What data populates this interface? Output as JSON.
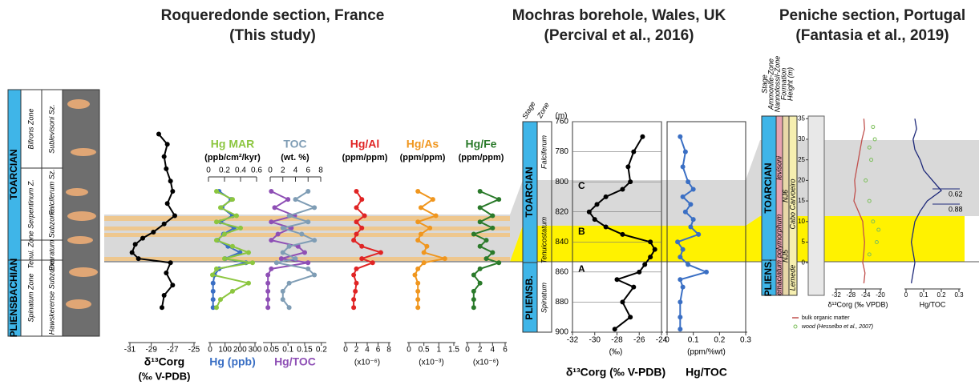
{
  "sections": [
    {
      "title": "Roqueredonde section, France",
      "subtitle": "(This study)"
    },
    {
      "title": "Mochras borehole, Wales, UK",
      "subtitle": "(Percival et al., 2016)"
    },
    {
      "title": "Peniche section, Portugal",
      "subtitle": "(Fantasia et al., 2019)"
    }
  ],
  "roqueredonde_column": {
    "stage": [
      "TOARCIAN",
      "PLIENSBACHIAN"
    ],
    "zones": [
      "Bifrons Zone",
      "Serpentinum Z.",
      "Tenui. Zone",
      "Spinatum Zone"
    ],
    "subzones": [
      "Sublevisoni Sz.",
      "Falciferum Sz.",
      "Exaratum Subzone",
      "Hawskerense Subzone"
    ]
  },
  "mochras_column": {
    "header": [
      "Stage",
      "Zone",
      "(m)"
    ],
    "stage": [
      "TOARCIAN",
      "PLIENSB."
    ],
    "zones": [
      "Falciferum",
      "Tenuicostatum",
      "Spinatum"
    ],
    "markers": [
      "C",
      "B",
      "A"
    ]
  },
  "peniche_column": {
    "header": [
      "Stage",
      "Ammonite-Zone",
      "Nannofossil-Zone",
      "Formation",
      "Height (m)"
    ],
    "stage": [
      "TOARCIAN",
      "PLIENS."
    ],
    "zones": [
      "levisoni",
      "polymorphum",
      "emaciatum"
    ],
    "nannofossil": [
      "NJ6",
      "NJ5"
    ],
    "formation": [
      "Cabo Carvoeiro",
      "Lemede"
    ]
  },
  "chart_data": [
    {
      "type": "line",
      "markers": true,
      "xlabel": "δ¹³Corg",
      "xunit": "(‰ V-PDB)",
      "y": [
        9.9,
        9.4,
        8.8,
        8.2,
        7.6,
        7.1,
        6.5,
        5.9,
        5.5,
        5.1,
        4.8,
        4.5,
        4.1,
        3.8,
        3.6,
        3.1,
        2.5,
        2.0,
        1.4
      ],
      "ylim": [
        0,
        10
      ],
      "xlim": [
        -31,
        -25
      ],
      "xticks": [
        -31,
        -29,
        -27,
        -25
      ],
      "series": [
        {
          "color": "#000000",
          "values": [
            -28.3,
            -27.5,
            -27.8,
            -27.6,
            -27.2,
            -27.0,
            -27.5,
            -26.8,
            -27.8,
            -28.8,
            -29.8,
            -30.5,
            -30.8,
            -30.2,
            -27.2,
            -27.6,
            -27.0,
            -27.8,
            -28.0
          ]
        }
      ]
    },
    {
      "type": "line",
      "markers": true,
      "subtitle": "(ppb/cm²/kyr)",
      "y": [
        7.1,
        6.7,
        6.3,
        5.9,
        5.6,
        5.3,
        5.0,
        4.7,
        4.4,
        4.1,
        3.8,
        3.6,
        3.3,
        3.0,
        2.6,
        2.2,
        1.8,
        1.4
      ],
      "ylim": [
        0,
        10
      ],
      "xlim": [
        0,
        300
      ],
      "xticks": [
        0,
        100,
        200,
        300
      ],
      "x2lim": [
        0,
        0.6
      ],
      "x2ticks": [
        0,
        0.2,
        0.4,
        0.6
      ],
      "series": [
        {
          "name": "Hg (ppb)",
          "color": "#3a6fc4",
          "values": [
            60,
            140,
            80,
            150,
            70,
            160,
            90,
            50,
            120,
            200,
            100,
            240,
            60,
            30,
            20,
            20,
            20,
            20
          ]
        },
        {
          "name": "Hg MAR",
          "color": "#8cc63f",
          "axis": "x2",
          "values": [
            0.1,
            0.3,
            0.15,
            0.35,
            0.1,
            0.4,
            0.2,
            0.1,
            0.3,
            0.5,
            0.2,
            0.55,
            0.1,
            0.05,
            0.5,
            0.3,
            0.15,
            0.1
          ]
        }
      ]
    },
    {
      "type": "line",
      "markers": true,
      "subtitle": "(wt. %)",
      "y": [
        7.1,
        6.7,
        6.3,
        5.9,
        5.6,
        5.3,
        5.0,
        4.7,
        4.4,
        4.1,
        3.8,
        3.6,
        3.3,
        3.0,
        2.6,
        2.2,
        1.8,
        1.4
      ],
      "ylim": [
        0,
        10
      ],
      "xlim": [
        0.03,
        0.21
      ],
      "xticks": [
        0.05,
        0.1,
        0.15,
        0.2
      ],
      "x2lim": [
        0,
        8
      ],
      "x2ticks": [
        0,
        2,
        4,
        6,
        8
      ],
      "series": [
        {
          "name": "Hg/TOC",
          "color": "#8e4fb5",
          "values": [
            0.05,
            0.1,
            0.06,
            0.12,
            0.05,
            0.11,
            0.07,
            0.05,
            0.13,
            0.15,
            0.08,
            0.16,
            0.05,
            0.04,
            0.04,
            0.04,
            0.04,
            0.04
          ]
        },
        {
          "name": "TOC",
          "color": "#7f9db5",
          "axis": "x2",
          "values": [
            6,
            4,
            7,
            3,
            6,
            2,
            5,
            7,
            3,
            2,
            4,
            1,
            6,
            7,
            3,
            2,
            2,
            3
          ]
        }
      ]
    },
    {
      "type": "line",
      "markers": true,
      "subtitle": "(ppm/ppm)",
      "xunit": "(x10⁻⁶)",
      "y": [
        7.1,
        6.7,
        6.3,
        5.9,
        5.6,
        5.3,
        5.0,
        4.7,
        4.4,
        4.1,
        3.8,
        3.6,
        3.3,
        3.0,
        2.6,
        2.2,
        1.8,
        1.4
      ],
      "ylim": [
        0,
        10
      ],
      "xlim": [
        0,
        8
      ],
      "xticks": [
        0,
        2,
        4,
        6,
        8
      ],
      "series": [
        {
          "name": "Hg/Al",
          "color": "#e02424",
          "values": [
            2,
            3,
            2,
            3.5,
            2,
            3,
            2,
            1.5,
            3,
            6.5,
            3,
            5,
            2,
            1.5,
            2,
            1.8,
            1.5,
            1.5
          ]
        }
      ]
    },
    {
      "type": "line",
      "markers": true,
      "subtitle": "(ppm/ppm)",
      "xunit": "(x10⁻³)",
      "y": [
        7.1,
        6.7,
        6.3,
        5.9,
        5.6,
        5.3,
        5.0,
        4.7,
        4.4,
        4.1,
        3.8,
        3.6,
        3.3,
        3.0,
        2.6,
        2.2,
        1.8,
        1.4
      ],
      "ylim": [
        0,
        10
      ],
      "xlim": [
        0,
        1.5
      ],
      "xticks": [
        0,
        0.5,
        1,
        1.5
      ],
      "series": [
        {
          "name": "Hg/As",
          "color": "#f0961e",
          "values": [
            0.3,
            0.8,
            0.4,
            0.9,
            0.3,
            0.7,
            0.4,
            0.3,
            0.6,
            0.5,
            1.2,
            0.5,
            0.3,
            0.2,
            0.3,
            0.3,
            0.3,
            0.3
          ]
        }
      ]
    },
    {
      "type": "line",
      "markers": true,
      "subtitle": "(ppm/ppm)",
      "xunit": "(x10⁻⁶)",
      "y": [
        7.1,
        6.7,
        6.3,
        5.9,
        5.6,
        5.3,
        5.0,
        4.7,
        4.4,
        4.1,
        3.8,
        3.6,
        3.3,
        3.0,
        2.6,
        2.2,
        1.8,
        1.4
      ],
      "ylim": [
        0,
        10
      ],
      "xlim": [
        0,
        6
      ],
      "xticks": [
        0,
        2,
        4,
        6
      ],
      "series": [
        {
          "name": "Hg/Fe",
          "color": "#2a7a2a",
          "values": [
            2,
            5,
            2,
            4,
            2,
            4,
            1,
            3,
            2,
            4,
            3,
            5,
            2,
            1,
            2,
            1,
            1,
            1
          ]
        }
      ]
    },
    {
      "type": "line",
      "markers": true,
      "grid": true,
      "xunit": "(‰)",
      "xlabel": "δ¹³Corg (‰ V-PDB)",
      "y": [
        770,
        780,
        790,
        800,
        805,
        810,
        815,
        820,
        825,
        830,
        835,
        840,
        845,
        850,
        855,
        860,
        865,
        870,
        880,
        890,
        898
      ],
      "ylim": [
        900,
        760
      ],
      "yticks": [
        760,
        780,
        800,
        820,
        840,
        860,
        880,
        900
      ],
      "xlim": [
        -32,
        -24
      ],
      "xticks": [
        -32,
        -30,
        -28,
        -26,
        -24
      ],
      "series": [
        {
          "color": "#000000",
          "values": [
            -25.7,
            -26.5,
            -27,
            -26.8,
            -27.5,
            -29,
            -29.8,
            -30.5,
            -30,
            -29,
            -27.5,
            -25,
            -24.6,
            -25,
            -25.5,
            -26,
            -28,
            -26.5,
            -27.5,
            -26.8,
            -28.2
          ]
        }
      ]
    },
    {
      "type": "line",
      "markers": true,
      "grid": true,
      "xunit": "(ppm/%wt)",
      "xlabel": "Hg/TOC",
      "y": [
        770,
        780,
        790,
        800,
        805,
        810,
        815,
        820,
        825,
        830,
        835,
        840,
        845,
        850,
        855,
        860,
        865,
        870,
        880,
        890,
        898
      ],
      "ylim": [
        900,
        760
      ],
      "xlim": [
        0,
        0.3
      ],
      "xticks": [
        0,
        0.1,
        0.2,
        0.3
      ],
      "series": [
        {
          "color": "#3a6fc4",
          "values": [
            0.05,
            0.07,
            0.06,
            0.08,
            0.1,
            0.06,
            0.09,
            0.07,
            0.1,
            0.09,
            0.12,
            0.04,
            0.06,
            0.05,
            0.08,
            0.15,
            0.05,
            0.06,
            0.05,
            0.05,
            0.05
          ]
        }
      ]
    },
    {
      "type": "line",
      "markers": false,
      "xlabel": "δ¹³Corg (‰ VPDB)",
      "y": [
        -5,
        -2.5,
        0,
        2.5,
        5,
        7.5,
        10,
        12.5,
        15,
        17.5,
        20,
        22.5,
        25,
        27.5,
        30,
        32.5,
        35
      ],
      "ylim": [
        -6,
        37
      ],
      "yticks": [
        0,
        5,
        10,
        15,
        20,
        25,
        30,
        35
      ],
      "xlim": [
        -32,
        -20
      ],
      "xticks": [
        -32,
        -28,
        -24,
        -20
      ],
      "series": [
        {
          "name": "bulk organic matter",
          "color": "#c0504d",
          "values": [
            -24.5,
            -24.2,
            -24.8,
            -24.5,
            -24.3,
            -24.6,
            -24.8,
            -26,
            -27.2,
            -26.8,
            -27,
            -26.5,
            -26,
            -25.5,
            -25,
            -24.3,
            -24.5
          ]
        },
        {
          "name": "wood (Hesselbo et al., 2007)",
          "type": "scatter",
          "color": "#7cbf5a",
          "y": [
            33,
            30,
            28,
            25,
            20,
            15,
            10,
            8,
            5,
            2
          ],
          "values": [
            -22,
            -21.5,
            -23,
            -22.5,
            -24,
            -23,
            -22,
            -20.5,
            -21,
            -23
          ]
        }
      ]
    },
    {
      "type": "line",
      "markers": false,
      "xlabel": "Hg/TOC",
      "annotations": [
        "0.62",
        "0.88"
      ],
      "y": [
        -5,
        -2.5,
        0,
        2.5,
        5,
        7.5,
        10,
        12.5,
        15,
        17.5,
        20,
        22.5,
        25,
        27.5,
        30,
        32.5,
        35
      ],
      "ylim": [
        -6,
        37
      ],
      "xlim": [
        0,
        0.3
      ],
      "xticks": [
        0,
        0.1,
        0.2,
        0.3
      ],
      "series": [
        {
          "color": "#1f2a7a",
          "values": [
            0.03,
            0.04,
            0.05,
            0.04,
            0.03,
            0.04,
            0.05,
            0.08,
            0.12,
            0.2,
            0.15,
            0.1,
            0.08,
            0.05,
            0.04,
            0.06,
            0.05
          ]
        }
      ]
    }
  ]
}
